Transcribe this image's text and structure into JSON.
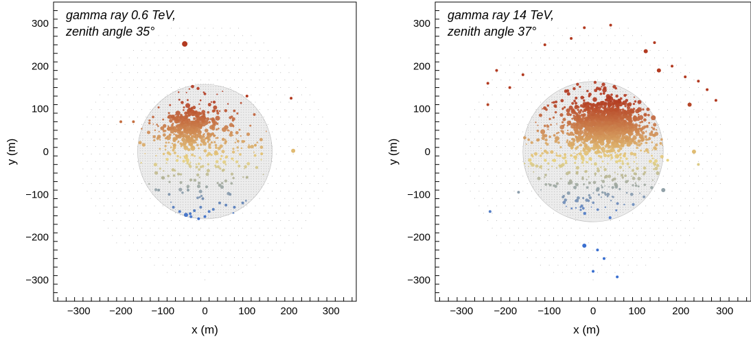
{
  "chart_data": [
    {
      "type": "scatter",
      "title": "",
      "xlabel": "x (m)",
      "ylabel": "y (m)",
      "xlim": [
        -360,
        360
      ],
      "ylim": [
        -350,
        350
      ],
      "xticks": [
        -300,
        -200,
        -100,
        0,
        100,
        200,
        300
      ],
      "yticks": [
        -300,
        -200,
        -100,
        0,
        100,
        200,
        300
      ],
      "tick_labels_x": [
        "−300",
        "−200",
        "−100",
        "0",
        "100",
        "200",
        "300"
      ],
      "tick_labels_y": [
        "−300",
        "−200",
        "−100",
        "0",
        "100",
        "200",
        "300"
      ],
      "annotation": [
        "gamma ray 0.6 TeV,",
        "zenith angle  35°"
      ],
      "grid": false,
      "array_layout": {
        "outer": {
          "center": [
            0,
            0
          ],
          "radius": 300,
          "spacing": 20
        },
        "inner": {
          "center": [
            0,
            0
          ],
          "radius": 160,
          "spacing": 6
        }
      },
      "color_scale": {
        "low_color": "#3a6fd0",
        "mid_color": "#e8d280",
        "high_color": "#b23a20",
        "y_min": -160,
        "y_max": 120
      },
      "shower": {
        "core": [
          -30,
          55
        ],
        "core_spread": 30,
        "bulk_spread": 70,
        "seed": 7
      },
      "points": [
        {
          "x": -48,
          "y": 252,
          "size": 4
        },
        {
          "x": -200,
          "y": 70,
          "size": 2
        },
        {
          "x": -170,
          "y": 70,
          "size": 2
        },
        {
          "x": 100,
          "y": 130,
          "size": 2
        },
        {
          "x": 205,
          "y": 125,
          "size": 2
        },
        {
          "x": 210,
          "y": 2,
          "size": 3
        },
        {
          "x": 120,
          "y": 15,
          "size": 2
        },
        {
          "x": 135,
          "y": -5,
          "size": 2
        },
        {
          "x": 100,
          "y": -60,
          "size": 2
        },
        {
          "x": -40,
          "y": -90,
          "size": 2
        },
        {
          "x": -85,
          "y": -100,
          "size": 2
        },
        {
          "x": -75,
          "y": -130,
          "size": 2
        },
        {
          "x": -60,
          "y": -140,
          "size": 2
        },
        {
          "x": -45,
          "y": -148,
          "size": 3
        },
        {
          "x": -35,
          "y": -145,
          "size": 2
        },
        {
          "x": -25,
          "y": -138,
          "size": 2
        },
        {
          "x": -15,
          "y": -157,
          "size": 2
        },
        {
          "x": -10,
          "y": -130,
          "size": 2
        },
        {
          "x": 0,
          "y": -152,
          "size": 2
        },
        {
          "x": 10,
          "y": -140,
          "size": 2
        },
        {
          "x": 20,
          "y": -135,
          "size": 2
        },
        {
          "x": 35,
          "y": -120,
          "size": 2
        },
        {
          "x": 50,
          "y": -125,
          "size": 2
        },
        {
          "x": 70,
          "y": -130,
          "size": 2
        },
        {
          "x": 90,
          "y": -120,
          "size": 2
        },
        {
          "x": -5,
          "y": -110,
          "size": 2
        },
        {
          "x": 60,
          "y": -100,
          "size": 2
        },
        {
          "x": -110,
          "y": -90,
          "size": 2
        }
      ]
    },
    {
      "type": "scatter",
      "title": "",
      "xlabel": "x (m)",
      "ylabel": "y (m)",
      "xlim": [
        -360,
        360
      ],
      "ylim": [
        -350,
        350
      ],
      "xticks": [
        -300,
        -200,
        -100,
        0,
        100,
        200,
        300
      ],
      "yticks": [
        -300,
        -200,
        -100,
        0,
        100,
        200,
        300
      ],
      "tick_labels_x": [
        "−300",
        "−200",
        "−100",
        "0",
        "100",
        "200",
        "300"
      ],
      "tick_labels_y": [
        "−300",
        "−200",
        "−100",
        "0",
        "100",
        "200",
        "300"
      ],
      "annotation": [
        "gamma ray 14 TeV,",
        "zenith angle  37°"
      ],
      "grid": false,
      "array_layout": {
        "outer": {
          "center": [
            0,
            0
          ],
          "radius": 300,
          "spacing": 20
        },
        "inner": {
          "center": [
            0,
            0
          ],
          "radius": 160,
          "spacing": 6
        }
      },
      "color_scale": {
        "low_color": "#3a6fd0",
        "mid_color": "#e8d280",
        "high_color": "#b23a20",
        "y_min": -160,
        "y_max": 120
      },
      "shower": {
        "core": [
          30,
          65
        ],
        "core_spread": 38,
        "bulk_spread": 85,
        "seed": 19
      },
      "points": [
        {
          "x": 40,
          "y": 296,
          "size": 2
        },
        {
          "x": -20,
          "y": 290,
          "size": 2
        },
        {
          "x": -110,
          "y": 250,
          "size": 2
        },
        {
          "x": -50,
          "y": 265,
          "size": 2
        },
        {
          "x": 140,
          "y": 255,
          "size": 2
        },
        {
          "x": 120,
          "y": 235,
          "size": 3
        },
        {
          "x": 150,
          "y": 190,
          "size": 3
        },
        {
          "x": 180,
          "y": 200,
          "size": 2
        },
        {
          "x": 210,
          "y": 175,
          "size": 2
        },
        {
          "x": 220,
          "y": 110,
          "size": 3
        },
        {
          "x": 240,
          "y": 165,
          "size": 2
        },
        {
          "x": 260,
          "y": 145,
          "size": 2
        },
        {
          "x": 280,
          "y": 120,
          "size": 2
        },
        {
          "x": -240,
          "y": 160,
          "size": 2
        },
        {
          "x": -220,
          "y": 190,
          "size": 2
        },
        {
          "x": -240,
          "y": 110,
          "size": 2
        },
        {
          "x": -160,
          "y": 180,
          "size": 2
        },
        {
          "x": -190,
          "y": 150,
          "size": 2
        },
        {
          "x": 230,
          "y": 0,
          "size": 3
        },
        {
          "x": 240,
          "y": -30,
          "size": 2
        },
        {
          "x": 170,
          "y": -20,
          "size": 2
        },
        {
          "x": 160,
          "y": -90,
          "size": 3
        },
        {
          "x": -170,
          "y": -95,
          "size": 2
        },
        {
          "x": -235,
          "y": -140,
          "size": 2
        },
        {
          "x": -20,
          "y": -220,
          "size": 3
        },
        {
          "x": 10,
          "y": -230,
          "size": 2
        },
        {
          "x": 0,
          "y": -280,
          "size": 2
        },
        {
          "x": 55,
          "y": -293,
          "size": 2
        },
        {
          "x": 25,
          "y": -250,
          "size": 2
        }
      ]
    }
  ]
}
